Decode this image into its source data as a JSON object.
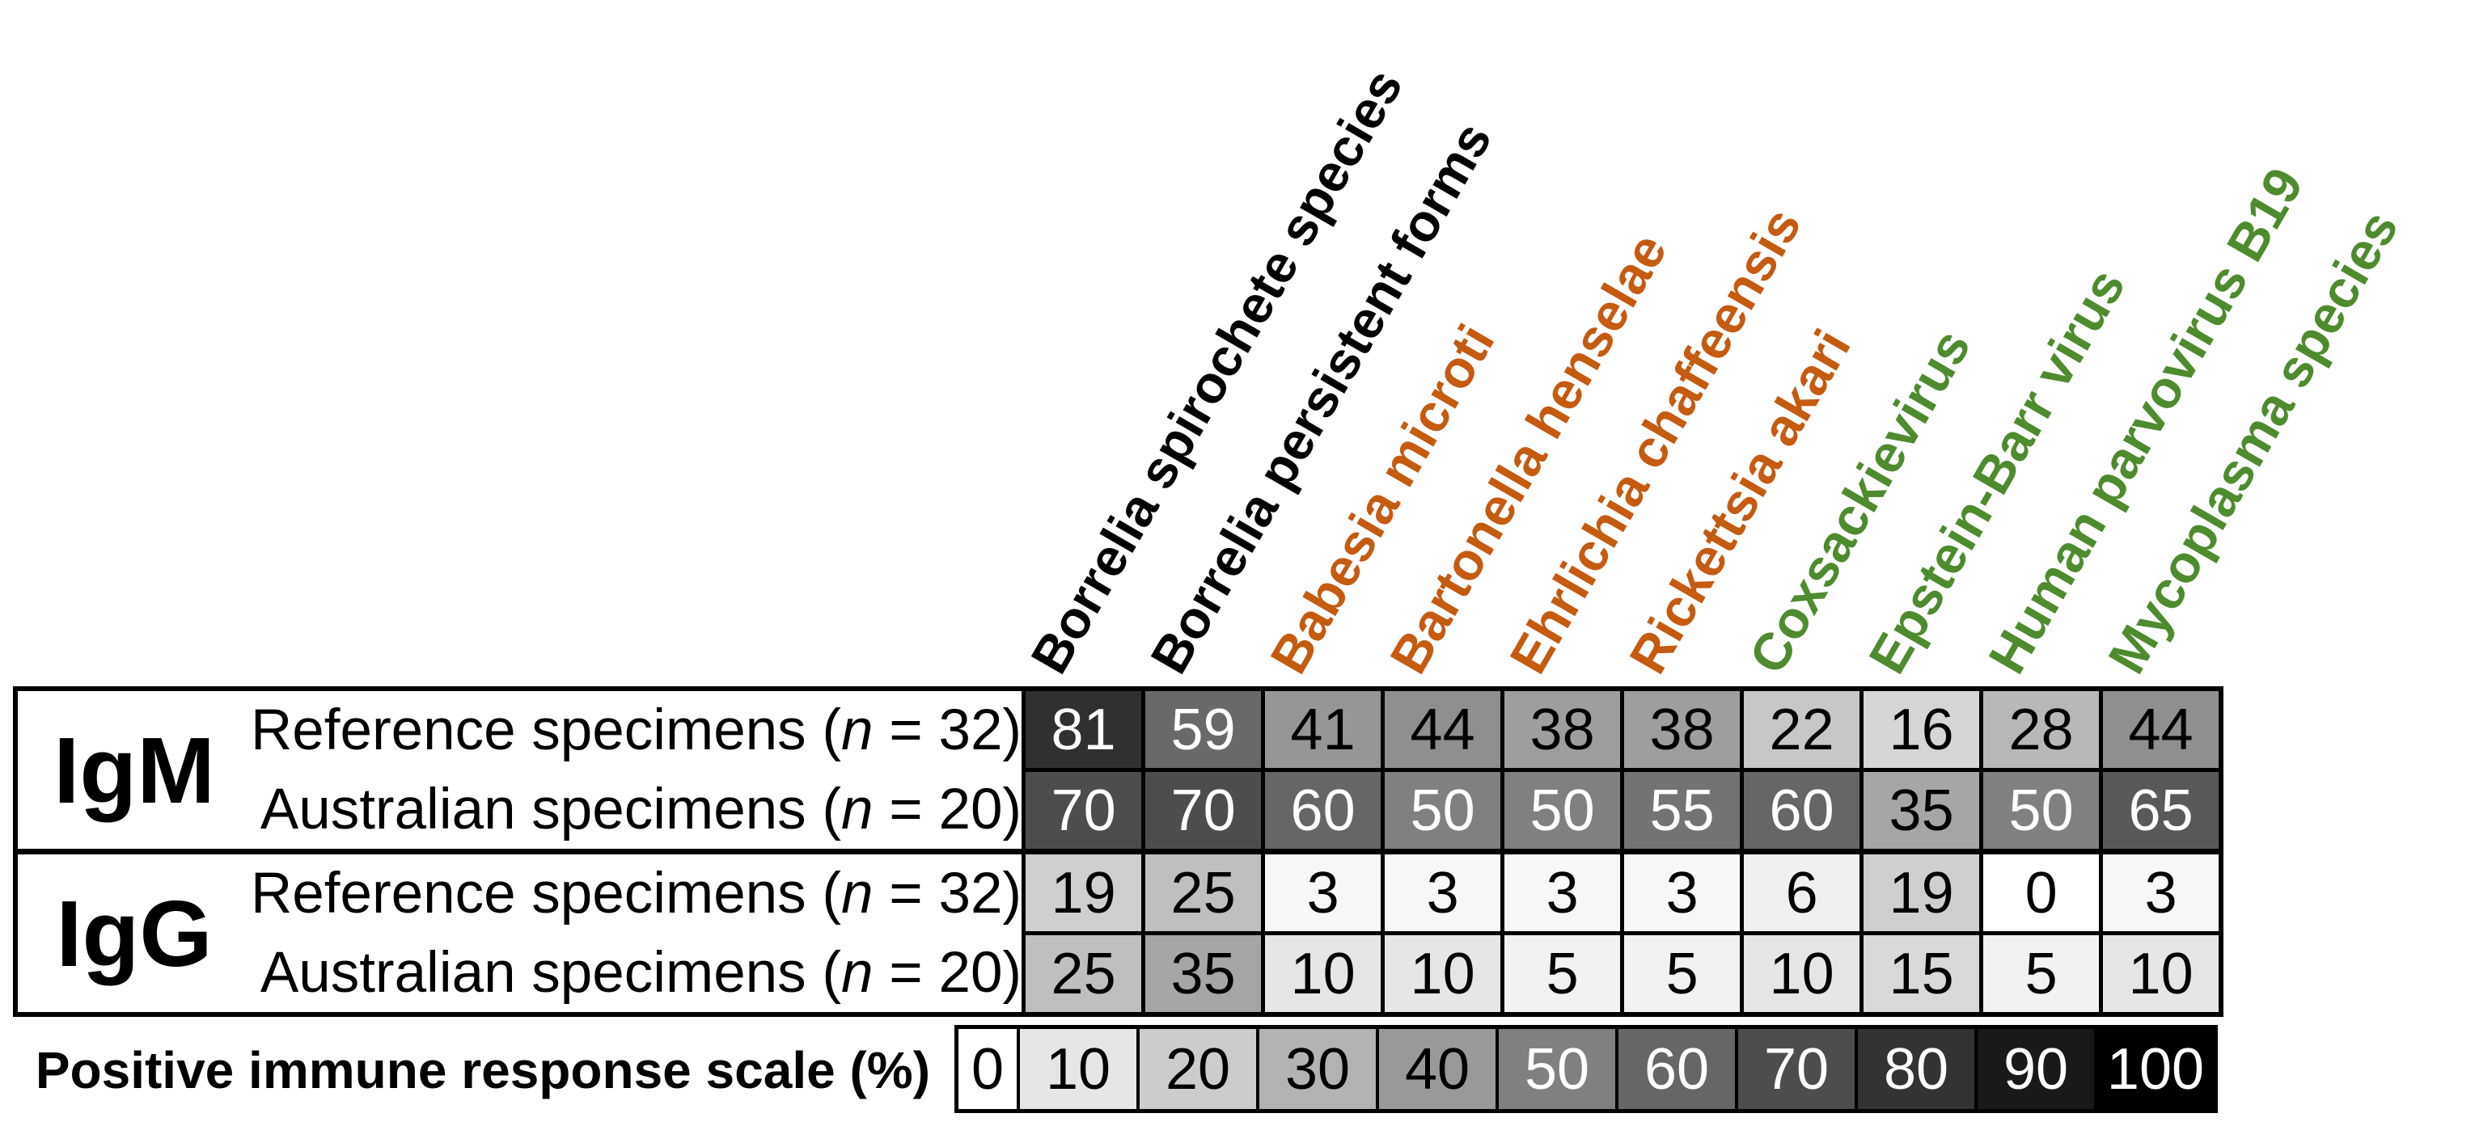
{
  "chart_data": {
    "type": "heatmap",
    "columns": [
      {
        "label": "Borrelia spirochete species",
        "color": "#000000"
      },
      {
        "label": "Borrelia persistent forms",
        "color": "#000000"
      },
      {
        "label": "Babesia microti",
        "color": "#C55A11"
      },
      {
        "label": "Bartonella henselae",
        "color": "#C55A11"
      },
      {
        "label": "Ehrlichia chaffeensis",
        "color": "#C55A11"
      },
      {
        "label": "Rickettsia akari",
        "color": "#C55A11"
      },
      {
        "label": "Coxsackievirus",
        "color": "#4E8B2E"
      },
      {
        "label": "Epstein-Barr virus",
        "color": "#4E8B2E"
      },
      {
        "label": "Human parvovirus B19",
        "color": "#4E8B2E"
      },
      {
        "label": "Mycoplasma species",
        "color": "#4E8B2E"
      }
    ],
    "row_groups": [
      {
        "label": "IgM",
        "rows": [
          {
            "label_pre": "Reference specimens (",
            "label_n": "n",
            "label_post": " = 32)",
            "values": [
              81,
              59,
              41,
              44,
              38,
              38,
              22,
              16,
              28,
              44
            ]
          },
          {
            "label_pre": "Australian specimens (",
            "label_n": "n",
            "label_post": " = 20)",
            "values": [
              70,
              70,
              60,
              50,
              50,
              55,
              60,
              35,
              50,
              65
            ]
          }
        ]
      },
      {
        "label": "IgG",
        "rows": [
          {
            "label_pre": "Reference specimens (",
            "label_n": "n",
            "label_post": " = 32)",
            "values": [
              19,
              25,
              3,
              3,
              3,
              3,
              6,
              19,
              0,
              3
            ]
          },
          {
            "label_pre": "Australian specimens (",
            "label_n": "n",
            "label_post": " = 20)",
            "values": [
              25,
              35,
              10,
              10,
              5,
              5,
              10,
              15,
              5,
              10
            ]
          }
        ]
      }
    ],
    "scale": {
      "label": "Positive immune response scale (%)",
      "ticks": [
        0,
        10,
        20,
        30,
        40,
        50,
        60,
        70,
        80,
        90,
        100
      ]
    },
    "value_unit": "%",
    "colormap": {
      "min_value": 0,
      "max_value": 100,
      "min_color": "#FFFFFF",
      "max_color": "#000000",
      "white_text_from": 50
    }
  }
}
